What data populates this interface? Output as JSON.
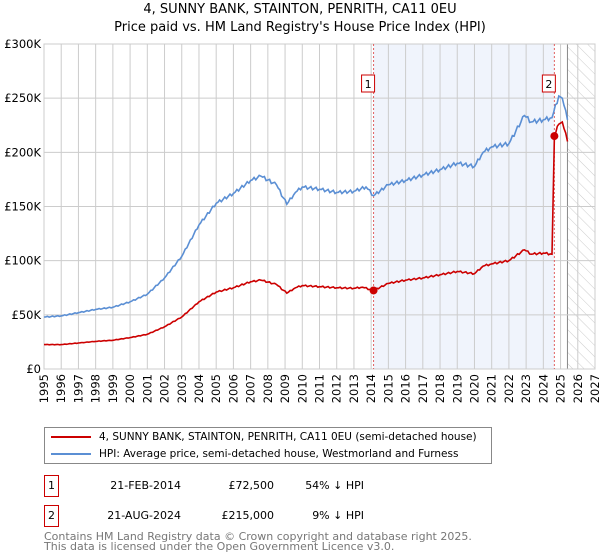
{
  "title": "4, SUNNY BANK, STAINTON, PENRITH, CA11 0EU",
  "subtitle": "Price paid vs. HM Land Registry's House Price Index (HPI)",
  "chart_data": {
    "type": "line",
    "xlim": [
      1995,
      2027
    ],
    "ylim": [
      0,
      300000
    ],
    "x_ticks": [
      "1995",
      "1996",
      "1997",
      "1998",
      "1999",
      "2000",
      "2001",
      "2002",
      "2003",
      "2004",
      "2005",
      "2006",
      "2007",
      "2008",
      "2009",
      "2010",
      "2011",
      "2012",
      "2013",
      "2014",
      "2015",
      "2016",
      "2017",
      "2018",
      "2019",
      "2020",
      "2021",
      "2022",
      "2023",
      "2024",
      "2025",
      "2026",
      "2027"
    ],
    "y_ticks": [
      {
        "v": 0,
        "label": "£0"
      },
      {
        "v": 50000,
        "label": "£50K"
      },
      {
        "v": 100000,
        "label": "£100K"
      },
      {
        "v": 150000,
        "label": "£150K"
      },
      {
        "v": 200000,
        "label": "£200K"
      },
      {
        "v": 250000,
        "label": "£250K"
      },
      {
        "v": 300000,
        "label": "£300K"
      }
    ],
    "shaded_period": [
      2014.14,
      2024.64
    ],
    "forecast_hatch_from": 2025.4,
    "series": [
      {
        "name": "4, SUNNY BANK, STAINTON, PENRITH, CA11 0EU (semi-detached house)",
        "color": "#cc0000",
        "points": [
          [
            1995,
            22500
          ],
          [
            1996,
            22500
          ],
          [
            1997,
            24000
          ],
          [
            1998,
            25500
          ],
          [
            1999,
            26500
          ],
          [
            2000,
            29000
          ],
          [
            2001,
            32000
          ],
          [
            2002,
            39000
          ],
          [
            2003,
            48000
          ],
          [
            2004,
            62000
          ],
          [
            2005,
            71000
          ],
          [
            2006,
            75000
          ],
          [
            2007,
            80500
          ],
          [
            2007.6,
            82000
          ],
          [
            2008.5,
            78000
          ],
          [
            2009.1,
            70000
          ],
          [
            2009.6,
            75000
          ],
          [
            2010,
            77000
          ],
          [
            2011,
            76000
          ],
          [
            2012,
            75000
          ],
          [
            2013,
            74500
          ],
          [
            2013.5,
            75500
          ],
          [
            2014.14,
            72500
          ],
          [
            2015,
            79000
          ],
          [
            2016,
            82000
          ],
          [
            2017,
            84000
          ],
          [
            2018,
            87000
          ],
          [
            2019,
            90000
          ],
          [
            2020,
            88000
          ],
          [
            2020.5,
            95000
          ],
          [
            2021,
            97000
          ],
          [
            2022,
            100000
          ],
          [
            2022.9,
            110000
          ],
          [
            2023.3,
            106000
          ],
          [
            2024,
            107000
          ],
          [
            2024.5,
            106000
          ],
          [
            2024.64,
            215000
          ],
          [
            2024.9,
            226000
          ],
          [
            2025.1,
            228000
          ],
          [
            2025.4,
            210000
          ]
        ]
      },
      {
        "name": "HPI: Average price, semi-detached house, Westmorland and Furness",
        "color": "#5b8fd4",
        "points": [
          [
            1995,
            48000
          ],
          [
            1996,
            49000
          ],
          [
            1997,
            52000
          ],
          [
            1998,
            55000
          ],
          [
            1999,
            57000
          ],
          [
            2000,
            62000
          ],
          [
            2001,
            69000
          ],
          [
            2002,
            84000
          ],
          [
            2003,
            104000
          ],
          [
            2004,
            133000
          ],
          [
            2005,
            153000
          ],
          [
            2006,
            162000
          ],
          [
            2007,
            174000
          ],
          [
            2007.6,
            178000
          ],
          [
            2008.5,
            170000
          ],
          [
            2009.1,
            152000
          ],
          [
            2009.6,
            163000
          ],
          [
            2010,
            168000
          ],
          [
            2011,
            166000
          ],
          [
            2012,
            163000
          ],
          [
            2013,
            164000
          ],
          [
            2013.7,
            168000
          ],
          [
            2014.14,
            160000
          ],
          [
            2015,
            170000
          ],
          [
            2016,
            174000
          ],
          [
            2017,
            179000
          ],
          [
            2018,
            184000
          ],
          [
            2019,
            190000
          ],
          [
            2020,
            187000
          ],
          [
            2020.5,
            200000
          ],
          [
            2021,
            205000
          ],
          [
            2022,
            208000
          ],
          [
            2022.9,
            234000
          ],
          [
            2023.3,
            228000
          ],
          [
            2024,
            230000
          ],
          [
            2024.5,
            232000
          ],
          [
            2024.9,
            252000
          ],
          [
            2025.1,
            250000
          ],
          [
            2025.4,
            230000
          ]
        ]
      }
    ],
    "annotations": [
      {
        "label": "1",
        "x": 2014.14,
        "y": 72500
      },
      {
        "label": "2",
        "x": 2024.64,
        "y": 215000
      }
    ]
  },
  "legend": [
    {
      "label": "4, SUNNY BANK, STAINTON, PENRITH, CA11 0EU (semi-detached house)",
      "color": "#cc0000"
    },
    {
      "label": "HPI: Average price, semi-detached house, Westmorland and Furness",
      "color": "#5b8fd4"
    }
  ],
  "transactions": [
    {
      "num": "1",
      "date": "21-FEB-2014",
      "price": "£72,500",
      "hpi": "54% ↓ HPI"
    },
    {
      "num": "2",
      "date": "21-AUG-2024",
      "price": "£215,000",
      "hpi": "9% ↓ HPI"
    }
  ],
  "footer": {
    "line1": "Contains HM Land Registry data © Crown copyright and database right 2025.",
    "line2": "This data is licensed under the Open Government Licence v3.0."
  }
}
